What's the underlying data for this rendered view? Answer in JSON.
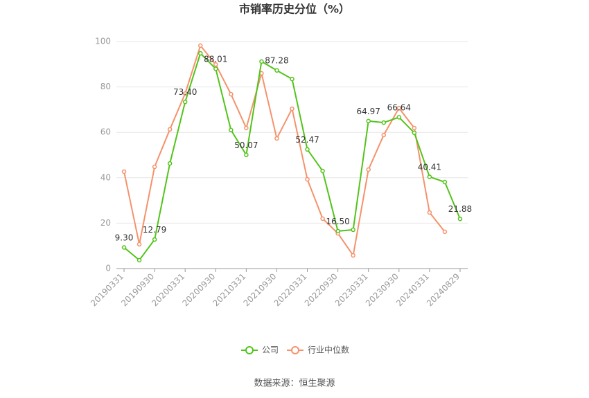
{
  "chart_data": {
    "type": "line",
    "title": "市销率历史分位（%）",
    "source": "数据来源：恒生聚源",
    "categories": [
      "20190331",
      null,
      "20190930",
      null,
      "20200331",
      null,
      "20200930",
      null,
      "20210331",
      null,
      "20210930",
      null,
      "20220331",
      null,
      "20220930",
      null,
      "20230331",
      null,
      "20230930",
      null,
      "20240331",
      null,
      "20240829"
    ],
    "series": [
      {
        "name": "公司",
        "color": "#52c41a",
        "values": [
          9.3,
          3.7,
          12.79,
          46.3,
          73.4,
          94.8,
          88.01,
          61.0,
          50.07,
          91.2,
          87.28,
          83.5,
          52.47,
          43.0,
          16.5,
          17.1,
          64.97,
          64.3,
          66.64,
          59.8,
          40.41,
          38.1,
          21.88
        ],
        "value_labels": [
          "9.30",
          null,
          "12.79",
          null,
          "73.40",
          null,
          "88.01",
          null,
          "50.07",
          null,
          "87.28",
          null,
          "52.47",
          null,
          "16.50",
          null,
          "64.97",
          null,
          "66.64",
          null,
          "40.41",
          null,
          "21.88"
        ]
      },
      {
        "name": "行业中位数",
        "color": "#f5926b",
        "values": [
          42.7,
          10.7,
          44.8,
          61.3,
          77.1,
          98.2,
          89.9,
          76.8,
          61.9,
          86.0,
          57.3,
          70.4,
          39.3,
          22.0,
          15.5,
          5.8,
          43.6,
          58.8,
          70.7,
          61.9,
          24.7,
          16.2,
          null
        ]
      }
    ],
    "ylim": [
      0,
      100
    ],
    "yticks": [
      0,
      20,
      40,
      60,
      80,
      100
    ],
    "grid": true
  }
}
